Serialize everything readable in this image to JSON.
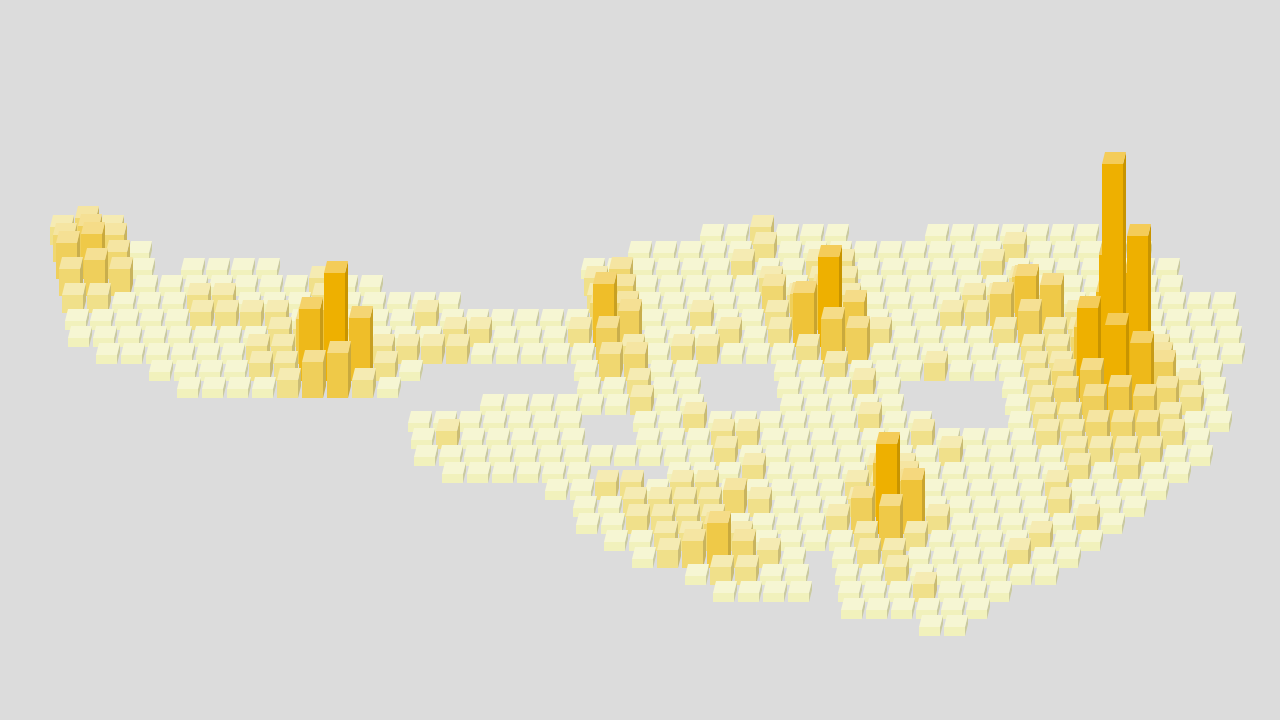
{
  "chart_data": {
    "type": "bar3D",
    "cells": [
      {
        "row": 0,
        "start": 0,
        "values": [
          2,
          3,
          2
        ]
      },
      {
        "row": 0,
        "start": 26,
        "values": [
          1,
          1,
          2,
          1,
          1,
          1
        ]
      },
      {
        "row": 0,
        "start": 35,
        "values": [
          1,
          1,
          1,
          1,
          1,
          1,
          1
        ]
      },
      {
        "row": 1,
        "start": 0,
        "values": [
          3,
          4,
          3,
          1
        ]
      },
      {
        "row": 1,
        "start": 23,
        "values": [
          1,
          1,
          1,
          1,
          1,
          2,
          1,
          1,
          1,
          1,
          1,
          1,
          1,
          1,
          1,
          2,
          1,
          1,
          1,
          1,
          1
        ]
      },
      {
        "row": 2,
        "start": 0,
        "values": [
          4,
          5,
          3,
          1
        ]
      },
      {
        "row": 2,
        "start": 5,
        "values": [
          1,
          1,
          1,
          1
        ]
      },
      {
        "row": 2,
        "start": 21,
        "values": [
          1,
          1,
          1,
          1,
          1,
          1,
          2,
          1,
          1,
          2,
          2,
          1,
          1,
          1,
          1,
          1,
          2,
          1,
          1,
          1,
          1,
          1,
          1,
          1
        ]
      },
      {
        "row": 3,
        "start": 0,
        "values": [
          3,
          4,
          3,
          1,
          1,
          1,
          1,
          1,
          1,
          1,
          2,
          1,
          1
        ]
      },
      {
        "row": 3,
        "start": 21,
        "values": [
          2,
          3,
          1,
          1,
          1,
          1,
          1,
          2,
          1,
          2,
          2,
          1,
          1,
          1,
          1,
          1,
          1,
          2,
          1,
          1,
          1,
          1,
          1,
          1
        ]
      },
      {
        "row": 4,
        "start": 0,
        "values": [
          2,
          2,
          1,
          1,
          1,
          2,
          2,
          1,
          1,
          1,
          2,
          1,
          1,
          1,
          1,
          1
        ]
      },
      {
        "row": 4,
        "start": 21,
        "values": [
          2,
          3,
          1,
          1,
          1,
          1,
          1,
          3,
          2,
          3,
          2,
          1,
          1,
          1,
          1,
          2,
          2,
          4,
          2,
          1,
          1,
          1,
          1,
          1,
          1,
          1
        ]
      },
      {
        "row": 5,
        "start": 0,
        "values": [
          1,
          1,
          1,
          1,
          1,
          2,
          2,
          2,
          2,
          1,
          2,
          1,
          1,
          1,
          2,
          1,
          1,
          1,
          1,
          1,
          1,
          3,
          3,
          1,
          1,
          2,
          1,
          1,
          2,
          4,
          5,
          2,
          1,
          1,
          1,
          2,
          2,
          4,
          6,
          5,
          2,
          2,
          1,
          1,
          1,
          1,
          1
        ]
      },
      {
        "row": 6,
        "start": 0,
        "values": [
          1,
          1,
          1,
          1,
          1,
          1,
          1,
          1,
          2,
          2,
          3,
          2,
          1,
          1,
          1,
          2,
          2,
          1,
          1,
          1,
          2,
          7,
          4,
          1,
          1,
          1,
          2,
          1,
          2,
          6,
          10,
          5,
          2,
          1,
          1,
          1,
          1,
          2,
          4,
          2,
          2,
          4,
          2,
          1,
          1,
          1,
          1
        ]
      },
      {
        "row": 7,
        "start": 1,
        "values": [
          1,
          1,
          1,
          1,
          1,
          1,
          2,
          2,
          5,
          6,
          2,
          2,
          2,
          2,
          2,
          1,
          1,
          1,
          1,
          1,
          4,
          2,
          1,
          2,
          2,
          1,
          1,
          1,
          2,
          5,
          4,
          1,
          1,
          1,
          1,
          1,
          1,
          2,
          2,
          3,
          8,
          6,
          2,
          1,
          1,
          1
        ]
      },
      {
        "row": 8,
        "start": 3,
        "values": [
          1,
          1,
          1,
          1,
          2,
          2,
          8,
          12,
          7,
          2,
          1
        ]
      },
      {
        "row": 8,
        "start": 20,
        "values": [
          1,
          3,
          3,
          1,
          1
        ]
      },
      {
        "row": 8,
        "start": 28,
        "values": [
          1,
          1,
          2,
          1,
          1,
          1,
          2,
          1,
          1,
          1,
          2,
          2,
          6,
          14,
          12,
          3,
          1,
          1
        ]
      },
      {
        "row": 9,
        "start": 4,
        "values": [
          1,
          1,
          1,
          1,
          2,
          4,
          5,
          2,
          1
        ]
      },
      {
        "row": 9,
        "start": 20,
        "values": [
          1,
          1,
          2,
          1,
          1
        ]
      },
      {
        "row": 9,
        "start": 28,
        "values": [
          1,
          1,
          1,
          2,
          1
        ]
      },
      {
        "row": 9,
        "start": 37,
        "values": [
          1,
          2,
          3,
          10,
          26,
          18,
          4,
          2,
          1
        ]
      },
      {
        "row": 10,
        "start": 16,
        "values": [
          1,
          1,
          1,
          1,
          1,
          1,
          2,
          1,
          1
        ]
      },
      {
        "row": 10,
        "start": 28,
        "values": [
          1,
          1,
          1,
          1,
          1
        ]
      },
      {
        "row": 10,
        "start": 37,
        "values": [
          1,
          2,
          3,
          5,
          10,
          8,
          3,
          2,
          1
        ]
      },
      {
        "row": 11,
        "start": 13,
        "values": [
          1,
          1,
          1,
          1,
          1,
          1,
          1
        ]
      },
      {
        "row": 11,
        "start": 22,
        "values": [
          1,
          1,
          2,
          1,
          1,
          1,
          1,
          1,
          1,
          2,
          1,
          1
        ]
      },
      {
        "row": 11,
        "start": 37,
        "values": [
          1,
          2,
          2,
          4,
          5,
          4,
          2,
          1,
          1
        ]
      },
      {
        "row": 12,
        "start": 13,
        "values": [
          1,
          2,
          1,
          1,
          1,
          1,
          1
        ]
      },
      {
        "row": 12,
        "start": 22,
        "values": [
          1,
          1,
          1,
          2,
          2,
          1,
          1,
          1,
          1,
          1,
          1,
          2,
          1,
          1,
          1,
          1,
          2,
          2,
          3,
          3,
          3,
          2,
          1
        ]
      },
      {
        "row": 13,
        "start": 13,
        "values": [
          1,
          1,
          1,
          1,
          1,
          1,
          1,
          1,
          1,
          1,
          1,
          1,
          2,
          1,
          1,
          1,
          1,
          1,
          1,
          1,
          1,
          2,
          1,
          1,
          1,
          1,
          2,
          2,
          2,
          2,
          1,
          1
        ]
      },
      {
        "row": 14,
        "start": 14,
        "values": [
          1,
          1,
          1,
          1,
          1,
          1
        ]
      },
      {
        "row": 14,
        "start": 23,
        "values": [
          1,
          1,
          1,
          2,
          1,
          1,
          1,
          1,
          2,
          2,
          1,
          1,
          1,
          1,
          1,
          1,
          2,
          1,
          2,
          1,
          1
        ]
      },
      {
        "row": 15,
        "start": 18,
        "values": [
          1,
          1,
          2,
          2,
          1,
          2,
          2,
          1,
          1,
          1,
          1,
          1,
          2,
          2,
          3,
          1,
          1,
          1,
          1,
          1,
          2,
          1,
          1,
          1,
          1
        ]
      },
      {
        "row": 16,
        "start": 19,
        "values": [
          1,
          1,
          2,
          2,
          2,
          2,
          3,
          2,
          1,
          1,
          1,
          2,
          6,
          4,
          1,
          1,
          1,
          1,
          1,
          2,
          1,
          1,
          1
        ]
      },
      {
        "row": 17,
        "start": 19,
        "values": [
          1,
          1,
          2,
          2,
          2,
          2,
          1,
          1,
          1,
          1,
          2,
          4,
          10,
          6,
          2,
          1,
          1,
          1,
          1,
          1,
          2,
          1
        ]
      },
      {
        "row": 18,
        "start": 20,
        "values": [
          1,
          1,
          2,
          2,
          3,
          2,
          1,
          1,
          1,
          1,
          2,
          5,
          2,
          1,
          1,
          1,
          1,
          2,
          1,
          1
        ]
      },
      {
        "row": 19,
        "start": 21,
        "values": [
          1,
          2,
          3,
          5,
          3,
          2,
          1
        ]
      },
      {
        "row": 19,
        "start": 29,
        "values": [
          1,
          2,
          2,
          1,
          1,
          1,
          1,
          2,
          1,
          1
        ]
      },
      {
        "row": 20,
        "start": 23,
        "values": [
          1,
          2,
          2,
          1,
          1
        ]
      },
      {
        "row": 20,
        "start": 29,
        "values": [
          1,
          1,
          2,
          1,
          1,
          1,
          1,
          1,
          1
        ]
      },
      {
        "row": 21,
        "start": 24,
        "values": [
          1,
          1,
          1,
          1
        ]
      },
      {
        "row": 21,
        "start": 29,
        "values": [
          1,
          1,
          1,
          2,
          1,
          1,
          1
        ]
      },
      {
        "row": 22,
        "start": 29,
        "values": [
          1,
          1,
          1,
          1,
          1,
          1
        ]
      },
      {
        "row": 23,
        "start": 32,
        "values": [
          1,
          1
        ]
      }
    ]
  }
}
